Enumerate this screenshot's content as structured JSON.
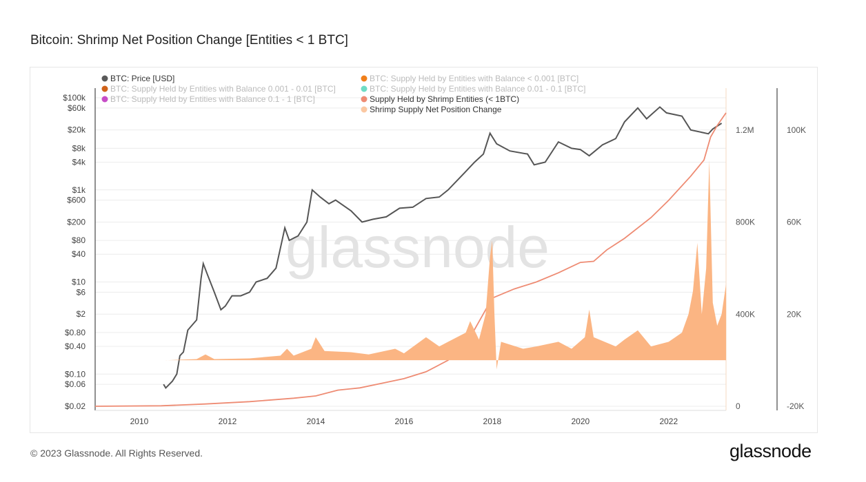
{
  "title": "Bitcoin: Shrimp Net Position Change [Entities < 1 BTC]",
  "footer": "© 2023 Glassnode. All Rights Reserved.",
  "logo": "glassnode",
  "watermark": "glassnode",
  "chart_data": {
    "type": "line",
    "title": "Bitcoin: Shrimp Net Position Change [Entities < 1 BTC]",
    "grid": true,
    "legend_placement": "top-left",
    "legend": [
      {
        "name": "BTC: Price [USD]",
        "color": "#5a5a5a",
        "active": true
      },
      {
        "name": "BTC: Supply Held by Entities with Balance < 0.001 [BTC]",
        "color": "#f07f1a",
        "active": false
      },
      {
        "name": "BTC: Supply Held by Entities with Balance 0.001 - 0.01 [BTC]",
        "color": "#d0631a",
        "active": false
      },
      {
        "name": "BTC: Supply Held by Entities with Balance 0.01 - 0.1 [BTC]",
        "color": "#6fdcc4",
        "active": false
      },
      {
        "name": "BTC: Supply Held by Entities with Balance 0.1 - 1 [BTC]",
        "color": "#c74dc7",
        "active": false
      },
      {
        "name": "Supply Held by Shrimp Entities (< 1BTC)",
        "color": "#ee8b73",
        "active": true
      },
      {
        "name": "Shrimp Supply Net Position Change",
        "color": "#fbc8a2",
        "active": true
      }
    ],
    "x_ticks": [
      "2010",
      "2012",
      "2014",
      "2016",
      "2018",
      "2020",
      "2022"
    ],
    "xlim": [
      2009.0,
      2023.3
    ],
    "y_left": {
      "scale": "log",
      "ticks": [
        "$100k",
        "$60k",
        "$20k",
        "$8k",
        "$4k",
        "$1k",
        "$600",
        "$200",
        "$80",
        "$40",
        "$10",
        "$6",
        "$2",
        "$0.80",
        "$0.40",
        "$0.10",
        "$0.06",
        "$0.02"
      ],
      "tick_values": [
        100000,
        60000,
        20000,
        8000,
        4000,
        1000,
        600,
        200,
        80,
        40,
        10,
        6,
        2,
        0.8,
        0.4,
        0.1,
        0.06,
        0.02
      ],
      "range": [
        0.02,
        100000
      ]
    },
    "y_mid": {
      "ticks": [
        "0",
        "400K",
        "800K",
        "1.2M"
      ],
      "tick_values": [
        0,
        400000,
        800000,
        1200000
      ],
      "range": [
        0,
        1200000
      ]
    },
    "y_right": {
      "ticks": [
        "-20K",
        "20K",
        "60K",
        "100K"
      ],
      "tick_values": [
        -20000,
        20000,
        60000,
        100000
      ],
      "range": [
        -20000,
        100000
      ]
    },
    "series": [
      {
        "name": "BTC: Price [USD]",
        "color": "#555555",
        "axis": "left",
        "points": [
          [
            2010.55,
            0.06
          ],
          [
            2010.6,
            0.05
          ],
          [
            2010.75,
            0.07
          ],
          [
            2010.85,
            0.1
          ],
          [
            2010.92,
            0.25
          ],
          [
            2011.0,
            0.3
          ],
          [
            2011.1,
            0.9
          ],
          [
            2011.3,
            1.5
          ],
          [
            2011.4,
            12
          ],
          [
            2011.45,
            25
          ],
          [
            2011.55,
            14
          ],
          [
            2011.7,
            6
          ],
          [
            2011.85,
            2.5
          ],
          [
            2011.95,
            3
          ],
          [
            2012.1,
            5
          ],
          [
            2012.3,
            5
          ],
          [
            2012.5,
            6
          ],
          [
            2012.65,
            10
          ],
          [
            2012.9,
            12
          ],
          [
            2013.1,
            20
          ],
          [
            2013.25,
            90
          ],
          [
            2013.3,
            150
          ],
          [
            2013.4,
            80
          ],
          [
            2013.6,
            100
          ],
          [
            2013.8,
            200
          ],
          [
            2013.92,
            1000
          ],
          [
            2014.1,
            700
          ],
          [
            2014.3,
            500
          ],
          [
            2014.45,
            600
          ],
          [
            2014.8,
            350
          ],
          [
            2015.05,
            200
          ],
          [
            2015.3,
            230
          ],
          [
            2015.6,
            260
          ],
          [
            2015.9,
            400
          ],
          [
            2016.2,
            420
          ],
          [
            2016.5,
            650
          ],
          [
            2016.8,
            700
          ],
          [
            2017.0,
            1000
          ],
          [
            2017.4,
            2500
          ],
          [
            2017.6,
            4000
          ],
          [
            2017.8,
            6000
          ],
          [
            2017.95,
            17000
          ],
          [
            2018.1,
            10000
          ],
          [
            2018.4,
            7000
          ],
          [
            2018.8,
            6000
          ],
          [
            2018.95,
            3500
          ],
          [
            2019.2,
            4000
          ],
          [
            2019.5,
            11000
          ],
          [
            2019.8,
            8000
          ],
          [
            2020.0,
            7500
          ],
          [
            2020.2,
            5500
          ],
          [
            2020.5,
            9500
          ],
          [
            2020.8,
            13000
          ],
          [
            2021.0,
            30000
          ],
          [
            2021.3,
            60000
          ],
          [
            2021.5,
            35000
          ],
          [
            2021.8,
            63000
          ],
          [
            2021.95,
            47000
          ],
          [
            2022.3,
            40000
          ],
          [
            2022.5,
            20000
          ],
          [
            2022.9,
            16500
          ],
          [
            2023.0,
            21000
          ],
          [
            2023.2,
            28000
          ]
        ]
      },
      {
        "name": "Supply Held by Shrimp Entities (< 1BTC)",
        "color": "#ee8b73",
        "axis": "mid",
        "points": [
          [
            2009.0,
            0
          ],
          [
            2010.5,
            2000
          ],
          [
            2011.5,
            10000
          ],
          [
            2012.5,
            20000
          ],
          [
            2013.5,
            35000
          ],
          [
            2014.0,
            45000
          ],
          [
            2014.5,
            70000
          ],
          [
            2015.0,
            80000
          ],
          [
            2015.5,
            100000
          ],
          [
            2016.0,
            120000
          ],
          [
            2016.5,
            150000
          ],
          [
            2017.0,
            200000
          ],
          [
            2017.5,
            300000
          ],
          [
            2018.0,
            470000
          ],
          [
            2018.5,
            510000
          ],
          [
            2019.0,
            540000
          ],
          [
            2019.5,
            580000
          ],
          [
            2020.0,
            625000
          ],
          [
            2020.3,
            630000
          ],
          [
            2020.6,
            680000
          ],
          [
            2021.0,
            730000
          ],
          [
            2021.6,
            820000
          ],
          [
            2022.0,
            895000
          ],
          [
            2022.5,
            1000000
          ],
          [
            2022.8,
            1070000
          ],
          [
            2022.95,
            1170000
          ],
          [
            2023.1,
            1220000
          ],
          [
            2023.3,
            1275000
          ]
        ]
      },
      {
        "name": "Shrimp Supply Net Position Change",
        "color": "#fbb583",
        "axis": "right",
        "type": "area",
        "points": [
          [
            2010.6,
            0
          ],
          [
            2011.3,
            500
          ],
          [
            2011.5,
            2500
          ],
          [
            2011.7,
            500
          ],
          [
            2012.5,
            800
          ],
          [
            2013.2,
            2000
          ],
          [
            2013.35,
            5000
          ],
          [
            2013.5,
            2000
          ],
          [
            2013.9,
            5000
          ],
          [
            2014.0,
            10000
          ],
          [
            2014.2,
            4000
          ],
          [
            2014.8,
            3500
          ],
          [
            2015.2,
            2500
          ],
          [
            2015.8,
            5000
          ],
          [
            2016.0,
            3000
          ],
          [
            2016.5,
            10000
          ],
          [
            2016.8,
            6000
          ],
          [
            2017.0,
            8000
          ],
          [
            2017.4,
            12000
          ],
          [
            2017.5,
            17000
          ],
          [
            2017.7,
            9000
          ],
          [
            2017.85,
            20000
          ],
          [
            2017.95,
            45000
          ],
          [
            2018.0,
            52000
          ],
          [
            2018.05,
            20000
          ],
          [
            2018.1,
            -4000
          ],
          [
            2018.2,
            8000
          ],
          [
            2018.7,
            5000
          ],
          [
            2019.0,
            6000
          ],
          [
            2019.5,
            8000
          ],
          [
            2019.8,
            5000
          ],
          [
            2020.1,
            10000
          ],
          [
            2020.2,
            22000
          ],
          [
            2020.3,
            10000
          ],
          [
            2020.8,
            6000
          ],
          [
            2021.0,
            9000
          ],
          [
            2021.3,
            13000
          ],
          [
            2021.6,
            6000
          ],
          [
            2022.0,
            8000
          ],
          [
            2022.3,
            12000
          ],
          [
            2022.45,
            20000
          ],
          [
            2022.55,
            30000
          ],
          [
            2022.65,
            51000
          ],
          [
            2022.75,
            20000
          ],
          [
            2022.85,
            40000
          ],
          [
            2022.92,
            87000
          ],
          [
            2023.0,
            25000
          ],
          [
            2023.1,
            15000
          ],
          [
            2023.2,
            20000
          ],
          [
            2023.3,
            33000
          ]
        ]
      }
    ]
  }
}
